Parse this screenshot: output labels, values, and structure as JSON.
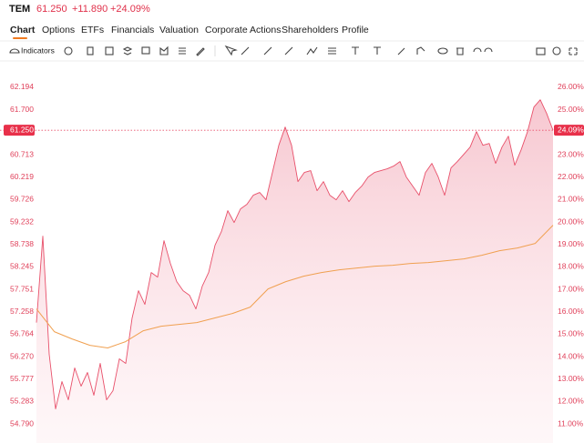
{
  "header": {
    "ticker": "TEM",
    "price": "61.250",
    "change": "+11.890",
    "change_pct": "+24.09%"
  },
  "tabs": [
    "Chart",
    "Options",
    "ETFs",
    "Financials",
    "Valuation",
    "Corporate Actions",
    "Shareholders",
    "Profile"
  ],
  "toolbar": {
    "indicators": "Indicators"
  },
  "chart_data": {
    "type": "line",
    "series": [
      {
        "color": "#e8506a",
        "area": true,
        "values": [
          57.02,
          58.92,
          56.32,
          55.12,
          55.72,
          55.32,
          56.02,
          55.62,
          55.92,
          55.42,
          56.12,
          55.32,
          55.52,
          56.22,
          56.12,
          57.12,
          57.72,
          57.42,
          58.12,
          58.02,
          58.82,
          58.32,
          57.92,
          57.72,
          57.62,
          57.32,
          57.82,
          58.12,
          58.72,
          59.02,
          59.48,
          59.22,
          59.52,
          59.62,
          59.82,
          59.88,
          59.72,
          60.32,
          60.92,
          61.32,
          60.92,
          60.12,
          60.32,
          60.36,
          59.92,
          60.12,
          59.82,
          59.72,
          59.92,
          59.68,
          59.88,
          60.02,
          60.22,
          60.32,
          60.36,
          60.4,
          60.46,
          60.56,
          60.22,
          60.02,
          59.82,
          60.32,
          60.52,
          60.22,
          59.82,
          60.42,
          60.56,
          60.72,
          60.88,
          61.22,
          60.92,
          60.96,
          60.52,
          60.88,
          61.12,
          60.48,
          60.82,
          61.22,
          61.76,
          61.92,
          61.62,
          61.25
        ]
      },
      {
        "color": "#f0a050",
        "area": false,
        "values": [
          57.32,
          56.82,
          56.66,
          56.52,
          56.46,
          56.6,
          56.84,
          56.94,
          56.98,
          57.02,
          57.12,
          57.22,
          57.36,
          57.76,
          57.92,
          58.04,
          58.12,
          58.18,
          58.22,
          58.26,
          58.28,
          58.32,
          58.34,
          58.38,
          58.42,
          58.5,
          58.6,
          58.66,
          58.76,
          59.16
        ]
      }
    ],
    "ylim": [
      54.37,
      62.754
    ],
    "yticks": [
      62.194,
      {
        "value": 61.7,
        "label": "61.700"
      },
      60.713,
      60.219,
      59.726,
      59.232,
      58.738,
      58.245,
      57.751,
      57.258,
      56.764,
      {
        "value": 56.27,
        "label": "56.270"
      },
      55.777,
      55.283,
      {
        "value": 54.79,
        "label": "54.790"
      }
    ],
    "y2lim": [
      10.15,
      27.135
    ],
    "y2ticks": [
      {
        "value": 26,
        "label": "26.00%"
      },
      {
        "value": 25,
        "label": "25.00%"
      },
      {
        "value": 24,
        "label": "24.00%"
      },
      {
        "value": 23,
        "label": "23.00%"
      },
      {
        "value": 22,
        "label": "22.00%"
      },
      {
        "value": 21,
        "label": "21.00%"
      },
      {
        "value": 20,
        "label": "20.00%"
      },
      {
        "value": 19,
        "label": "19.00%"
      },
      {
        "value": 18,
        "label": "18.00%"
      },
      {
        "value": 17,
        "label": "17.00%"
      },
      {
        "value": 16,
        "label": "16.00%"
      },
      {
        "value": 15,
        "label": "15.00%"
      },
      {
        "value": 14,
        "label": "14.00%"
      },
      {
        "value": 13,
        "label": "13.00%"
      },
      {
        "value": 12,
        "label": "12.00%"
      },
      {
        "value": 11,
        "label": "11.00%"
      }
    ],
    "last_value": {
      "value": 61.25,
      "label": "61.250"
    },
    "last_value_y2": {
      "value": 24.09,
      "label": "24.09%"
    },
    "tick_color": "#e0405a"
  }
}
